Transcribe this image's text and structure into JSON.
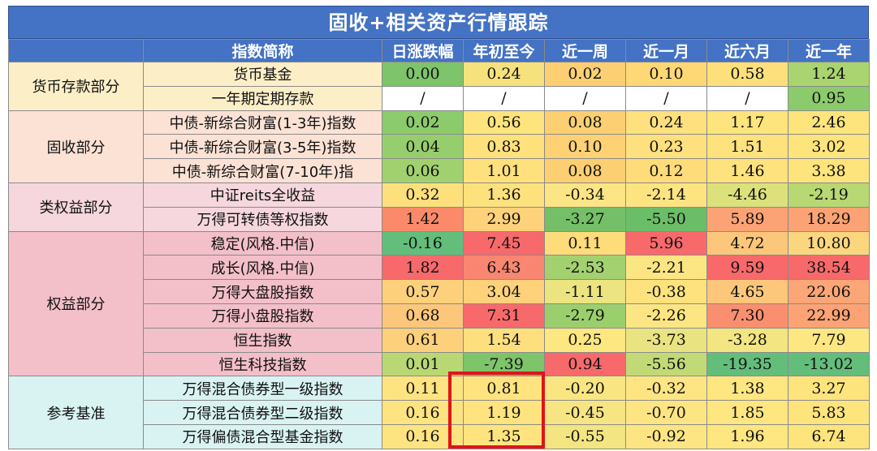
{
  "title": "固收+相关资产行情跟踪",
  "headers": [
    "指数简称",
    "日涨跌幅",
    "年初至今",
    "近一周",
    "近一月",
    "近六月",
    "近一年"
  ],
  "groups": [
    {
      "name": "货币存款部分",
      "bg": "#fcefc7",
      "rows": [
        {
          "name": "货币基金",
          "cells": [
            {
              "v": "0.00",
              "c": "#7ec46a"
            },
            {
              "v": "0.24",
              "c": "#f6e27d"
            },
            {
              "v": "0.02",
              "c": "#fccf73"
            },
            {
              "v": "0.10",
              "c": "#fed874"
            },
            {
              "v": "0.58",
              "c": "#fde07c"
            },
            {
              "v": "1.24",
              "c": "#a9d46f"
            }
          ]
        },
        {
          "name": "一年期定期存款",
          "cells": [
            {
              "v": "/",
              "c": "#ffffff"
            },
            {
              "v": "/",
              "c": "#ffffff"
            },
            {
              "v": "/",
              "c": "#ffffff"
            },
            {
              "v": "/",
              "c": "#ffffff"
            },
            {
              "v": "/",
              "c": "#ffffff"
            },
            {
              "v": "0.95",
              "c": "#8ccb6c"
            }
          ]
        }
      ]
    },
    {
      "name": "固收部分",
      "bg": "#fbe2d5",
      "rows": [
        {
          "name": "中债-新综合财富(1-3年)指数",
          "cells": [
            {
              "v": "0.02",
              "c": "#8ccb6c"
            },
            {
              "v": "0.56",
              "c": "#fde47d"
            },
            {
              "v": "0.08",
              "c": "#fccf73"
            },
            {
              "v": "0.24",
              "c": "#fee07e"
            },
            {
              "v": "1.17",
              "c": "#fde47d"
            },
            {
              "v": "2.46",
              "c": "#fde47d"
            }
          ]
        },
        {
          "name": "中债-新综合财富(3-5年)指数",
          "cells": [
            {
              "v": "0.04",
              "c": "#97ce6d"
            },
            {
              "v": "0.83",
              "c": "#fee17c"
            },
            {
              "v": "0.10",
              "c": "#fdd174"
            },
            {
              "v": "0.23",
              "c": "#fee07e"
            },
            {
              "v": "1.51",
              "c": "#fee27d"
            },
            {
              "v": "3.02",
              "c": "#fde47d"
            }
          ]
        },
        {
          "name": "中债-新综合财富(7-10年)指",
          "cells": [
            {
              "v": "0.06",
              "c": "#a1d16e"
            },
            {
              "v": "1.01",
              "c": "#fee17c"
            },
            {
              "v": "0.08",
              "c": "#fccf73"
            },
            {
              "v": "0.12",
              "c": "#fedc79"
            },
            {
              "v": "1.46",
              "c": "#fee27d"
            },
            {
              "v": "3.38",
              "c": "#fde47d"
            }
          ]
        }
      ]
    },
    {
      "name": "类权益部分",
      "bg": "#f6d7de",
      "rows": [
        {
          "name": "中证reits全收益",
          "cells": [
            {
              "v": "0.32",
              "c": "#fde07c"
            },
            {
              "v": "1.36",
              "c": "#fde17c"
            },
            {
              "v": "-0.34",
              "c": "#fbe584"
            },
            {
              "v": "-2.14",
              "c": "#fee481"
            },
            {
              "v": "-4.46",
              "c": "#dce17b"
            },
            {
              "v": "-2.19",
              "c": "#b8d873"
            }
          ]
        },
        {
          "name": "万得可转债等权指数",
          "cells": [
            {
              "v": "1.42",
              "c": "#fb8a6a"
            },
            {
              "v": "2.99",
              "c": "#fdd27a"
            },
            {
              "v": "-3.27",
              "c": "#74bf68"
            },
            {
              "v": "-5.50",
              "c": "#6bbd67"
            },
            {
              "v": "5.89",
              "c": "#fba374"
            },
            {
              "v": "18.29",
              "c": "#fba374"
            }
          ]
        }
      ]
    },
    {
      "name": "权益部分",
      "bg": "#f3bfc8",
      "rows": [
        {
          "name": "稳定(风格.中信)",
          "cells": [
            {
              "v": "-0.16",
              "c": "#63be7b"
            },
            {
              "v": "7.45",
              "c": "#f8696b"
            },
            {
              "v": "0.11",
              "c": "#fedc79"
            },
            {
              "v": "5.96",
              "c": "#f8696b"
            },
            {
              "v": "4.72",
              "c": "#fcc77b"
            },
            {
              "v": "10.80",
              "c": "#fbd67e"
            }
          ]
        },
        {
          "name": "成长(风格.中信)",
          "cells": [
            {
              "v": "1.82",
              "c": "#f8696b"
            },
            {
              "v": "6.43",
              "c": "#f98670"
            },
            {
              "v": "-2.53",
              "c": "#a3d170"
            },
            {
              "v": "-2.21",
              "c": "#fce683"
            },
            {
              "v": "9.59",
              "c": "#f8696b"
            },
            {
              "v": "38.54",
              "c": "#f8696b"
            }
          ]
        },
        {
          "name": "万得大盘股指数",
          "cells": [
            {
              "v": "0.57",
              "c": "#fdd17c"
            },
            {
              "v": "3.04",
              "c": "#fdd27a"
            },
            {
              "v": "-1.11",
              "c": "#ece381"
            },
            {
              "v": "-0.38",
              "c": "#fee27e"
            },
            {
              "v": "4.65",
              "c": "#fcc77b"
            },
            {
              "v": "22.06",
              "c": "#fba677"
            }
          ]
        },
        {
          "name": "万得小盘股指数",
          "cells": [
            {
              "v": "0.68",
              "c": "#fcc77b"
            },
            {
              "v": "7.31",
              "c": "#f8696b"
            },
            {
              "v": "-2.79",
              "c": "#9bcf6e"
            },
            {
              "v": "-2.26",
              "c": "#fce683"
            },
            {
              "v": "7.30",
              "c": "#fa8f6f"
            },
            {
              "v": "22.99",
              "c": "#fba374"
            }
          ]
        },
        {
          "name": "恒生指数",
          "cells": [
            {
              "v": "0.61",
              "c": "#fdd17c"
            },
            {
              "v": "1.54",
              "c": "#fedf7e"
            },
            {
              "v": "0.25",
              "c": "#fde781"
            },
            {
              "v": "-3.73",
              "c": "#e9e381"
            },
            {
              "v": "-3.28",
              "c": "#f2e582"
            },
            {
              "v": "7.79",
              "c": "#fde782"
            }
          ]
        },
        {
          "name": "恒生科技指数",
          "cells": [
            {
              "v": "0.01",
              "c": "#b9d873"
            },
            {
              "v": "-7.39",
              "c": "#7ec46a"
            },
            {
              "v": "0.94",
              "c": "#f8696b"
            },
            {
              "v": "-5.56",
              "c": "#c2da76"
            },
            {
              "v": "-19.35",
              "c": "#63be7b"
            },
            {
              "v": "-13.02",
              "c": "#63be7b"
            }
          ]
        }
      ]
    },
    {
      "name": "参考基准",
      "bg": "#d9f3f3",
      "rows": [
        {
          "name": "万得混合债券型一级指数",
          "cells": [
            {
              "v": "0.11",
              "c": "#fee481"
            },
            {
              "v": "0.81",
              "c": "#fee37f"
            },
            {
              "v": "-0.20",
              "c": "#f9e683"
            },
            {
              "v": "-0.32",
              "c": "#fee583"
            },
            {
              "v": "1.38",
              "c": "#fee681"
            },
            {
              "v": "3.27",
              "c": "#fde47d"
            }
          ]
        },
        {
          "name": "万得混合债券型二级指数",
          "cells": [
            {
              "v": "0.16",
              "c": "#fee481"
            },
            {
              "v": "1.19",
              "c": "#fee37f"
            },
            {
              "v": "-0.45",
              "c": "#f6e582"
            },
            {
              "v": "-0.70",
              "c": "#fee583"
            },
            {
              "v": "1.85",
              "c": "#fee681"
            },
            {
              "v": "5.83",
              "c": "#fde47d"
            }
          ]
        },
        {
          "name": "万得偏债混合型基金指数",
          "cells": [
            {
              "v": "0.16",
              "c": "#fee481"
            },
            {
              "v": "1.35",
              "c": "#fee37f"
            },
            {
              "v": "-0.55",
              "c": "#f2e582"
            },
            {
              "v": "-0.92",
              "c": "#fee583"
            },
            {
              "v": "1.96",
              "c": "#fee681"
            },
            {
              "v": "6.74",
              "c": "#fde47d"
            }
          ]
        }
      ]
    }
  ],
  "highlight_color": "#e1131a"
}
